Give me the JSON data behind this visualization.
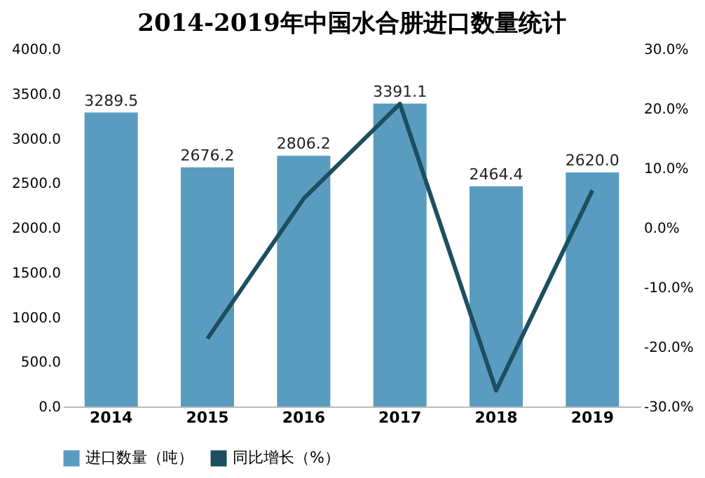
{
  "chart_data": {
    "type": "bar",
    "title": "2014-2019年中国水合肼进口数量统计",
    "categories": [
      "2014",
      "2015",
      "2016",
      "2017",
      "2018",
      "2019"
    ],
    "series": [
      {
        "name": "进口数量（吨）",
        "color": "#5a9cc0",
        "values": [
          3289.5,
          2676.2,
          2806.2,
          3391.1,
          2464.4,
          2620.0
        ],
        "value_labels": [
          "3289.5",
          "2676.2",
          "2806.2",
          "3391.1",
          "2464.4",
          "2620.0"
        ]
      },
      {
        "name": "同比增长（%）",
        "color": "#1d4f60",
        "type": "line",
        "axis": "y2",
        "values": [
          null,
          -18.6,
          4.9,
          20.8,
          -27.3,
          6.3
        ]
      }
    ],
    "ylim": [
      0,
      4000
    ],
    "yticks": [
      {
        "value": 0,
        "label": "0.0"
      },
      {
        "value": 500,
        "label": "500.0"
      },
      {
        "value": 1000,
        "label": "1000.0"
      },
      {
        "value": 1500,
        "label": "1500.0"
      },
      {
        "value": 2000,
        "label": "2000.0"
      },
      {
        "value": 2500,
        "label": "2500.0"
      },
      {
        "value": 3000,
        "label": "3000.0"
      },
      {
        "value": 3500,
        "label": "3500.0"
      },
      {
        "value": 4000,
        "label": "4000.0"
      }
    ],
    "y2lim": [
      -30,
      30
    ],
    "y2ticks": [
      {
        "value": -30,
        "label": "-30.0%"
      },
      {
        "value": -20,
        "label": "-20.0%"
      },
      {
        "value": -10,
        "label": "-10.0%"
      },
      {
        "value": 0,
        "label": "0.0%"
      },
      {
        "value": 10,
        "label": "10.0%"
      },
      {
        "value": 20,
        "label": "20.0%"
      },
      {
        "value": 30,
        "label": "30.0%"
      }
    ],
    "legend": "bottom",
    "grid": false,
    "marker": "none",
    "line_style": "solid"
  }
}
